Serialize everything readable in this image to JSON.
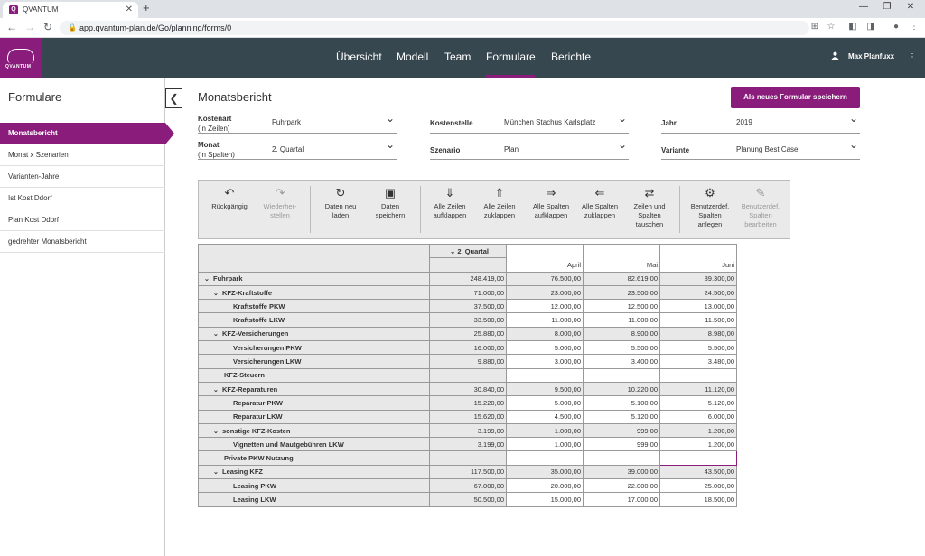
{
  "browser": {
    "tab_title": "QVANTUM",
    "url": "app.qvantum-plan.de/Go/planning/forms/0"
  },
  "app": {
    "logo_text": "QVANTUM",
    "nav": [
      "Übersicht",
      "Modell",
      "Team",
      "Formulare",
      "Berichte"
    ],
    "active_nav": "Formulare",
    "user": "Max Planfuxx",
    "brand_color": "#8a1c7c",
    "header_color": "#37474f"
  },
  "sidebar": {
    "title": "Formulare",
    "items": [
      {
        "label": "Monatsbericht",
        "active": true
      },
      {
        "label": "Monat x Szenarien"
      },
      {
        "label": "Varianten-Jahre"
      },
      {
        "label": "Ist Kost Ddorf"
      },
      {
        "label": "Plan Kost Ddorf"
      },
      {
        "label": "gedrehter Monatsbericht"
      }
    ]
  },
  "form": {
    "title": "Monatsbericht",
    "save_as_new": "Als neues Formular speichern",
    "selectors": {
      "kostenart": {
        "label1": "Kostenart",
        "label2": "(in Zeilen)",
        "value": "Fuhrpark"
      },
      "monat": {
        "label1": "Monat",
        "label2": "(in Spalten)",
        "value": "2. Quartal"
      },
      "kostenstelle": {
        "label": "Kostenstelle",
        "value": "München Stachus Karlsplatz"
      },
      "szenario": {
        "label": "Szenario",
        "value": "Plan"
      },
      "jahr": {
        "label": "Jahr",
        "value": "2019"
      },
      "variante": {
        "label": "Variante",
        "value": "Planung Best Case"
      }
    }
  },
  "toolbar": {
    "undo": [
      "Rückgängig"
    ],
    "redo": [
      "Wiederher-",
      "stellen"
    ],
    "reload": [
      "Daten neu",
      "laden"
    ],
    "save": [
      "Daten",
      "speichern"
    ],
    "expand_rows": [
      "Alle Zeilen",
      "aufklappen"
    ],
    "collapse_rows": [
      "Alle Zeilen",
      "zuklappen"
    ],
    "expand_cols": [
      "Alle Spalten",
      "aufklappen"
    ],
    "collapse_cols": [
      "Alle Spalten",
      "zuklappen"
    ],
    "swap": [
      "Zeilen und",
      "Spalten",
      "tauschen"
    ],
    "custom_add": [
      "Benutzerdef.",
      "Spalten",
      "anlegen"
    ],
    "custom_edit": [
      "Benutzerdef.",
      "Spalten",
      "bearbeiten"
    ]
  },
  "table": {
    "col_header_group": "2. Quartal",
    "col_headers": [
      "April",
      "Mai",
      "Juni"
    ],
    "rows": [
      {
        "label": "Fuhrpark",
        "level": 1,
        "toggle": true,
        "values": [
          "248.419,00",
          "76.500,00",
          "82.619,00",
          "89.300,00"
        ]
      },
      {
        "label": "KFZ-Kraftstoffe",
        "level": 2,
        "toggle": true,
        "values": [
          "71.000,00",
          "23.000,00",
          "23.500,00",
          "24.500,00"
        ]
      },
      {
        "label": "Kraftstoffe PKW",
        "level": 3,
        "values": [
          "37.500,00",
          "12.000,00",
          "12.500,00",
          "13.000,00"
        ]
      },
      {
        "label": "Kraftstoffe LKW",
        "level": 3,
        "values": [
          "33.500,00",
          "11.000,00",
          "11.000,00",
          "11.500,00"
        ]
      },
      {
        "label": "KFZ-Versicherungen",
        "level": 2,
        "toggle": true,
        "values": [
          "25.880,00",
          "8.000,00",
          "8.900,00",
          "8.980,00"
        ]
      },
      {
        "label": "Versicherungen PKW",
        "level": 3,
        "values": [
          "16.000,00",
          "5.000,00",
          "5.500,00",
          "5.500,00"
        ]
      },
      {
        "label": "Versicherungen LKW",
        "level": 3,
        "values": [
          "9.880,00",
          "3.000,00",
          "3.400,00",
          "3.480,00"
        ]
      },
      {
        "label": "KFZ-Steuern",
        "level": 2,
        "values": [
          "",
          "",
          "",
          ""
        ]
      },
      {
        "label": "KFZ-Reparaturen",
        "level": 2,
        "toggle": true,
        "values": [
          "30.840,00",
          "9.500,00",
          "10.220,00",
          "11.120,00"
        ]
      },
      {
        "label": "Reparatur PKW",
        "level": 3,
        "values": [
          "15.220,00",
          "5.000,00",
          "5.100,00",
          "5.120,00"
        ]
      },
      {
        "label": "Reparatur LKW",
        "level": 3,
        "values": [
          "15.620,00",
          "4.500,00",
          "5.120,00",
          "6.000,00"
        ]
      },
      {
        "label": "sonstige KFZ-Kosten",
        "level": 2,
        "toggle": true,
        "values": [
          "3.199,00",
          "1.000,00",
          "999,00",
          "1.200,00"
        ]
      },
      {
        "label": "Vignetten und Mautgebühren LKW",
        "level": 3,
        "values": [
          "3.199,00",
          "1.000,00",
          "999,00",
          "1.200,00"
        ]
      },
      {
        "label": "Private PKW Nutzung",
        "level": 2,
        "values": [
          "",
          "",
          "",
          ""
        ]
      },
      {
        "label": "Leasing KFZ",
        "level": 2,
        "toggle": true,
        "values": [
          "117.500,00",
          "35.000,00",
          "39.000,00",
          "43.500,00"
        ]
      },
      {
        "label": "Leasing PKW",
        "level": 3,
        "values": [
          "67.000,00",
          "20.000,00",
          "22.000,00",
          "25.000,00"
        ]
      },
      {
        "label": "Leasing LKW",
        "level": 3,
        "values": [
          "50.500,00",
          "15.000,00",
          "17.000,00",
          "18.500,00"
        ]
      }
    ]
  }
}
